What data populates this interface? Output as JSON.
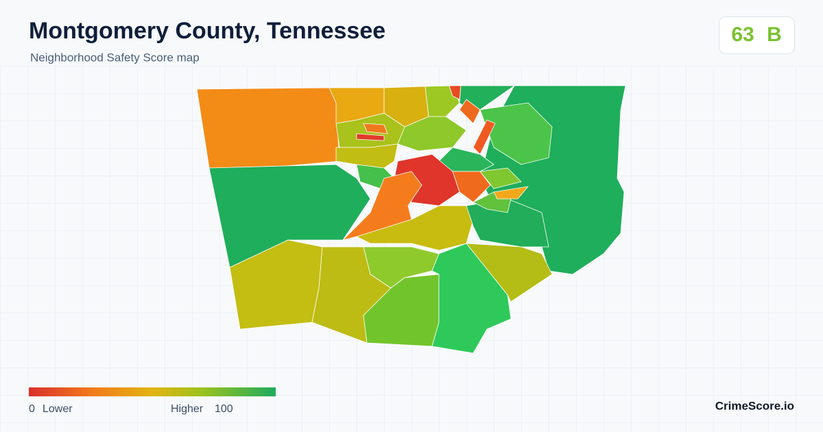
{
  "header": {
    "title": "Montgomery County, Tennessee",
    "subtitle": "Neighborhood Safety Score map"
  },
  "score": {
    "value": 63,
    "grade": "B"
  },
  "legend": {
    "min": 0,
    "min_label": "Lower",
    "max_label": "Higher",
    "max": 100
  },
  "brand": "CrimeScore.io"
}
